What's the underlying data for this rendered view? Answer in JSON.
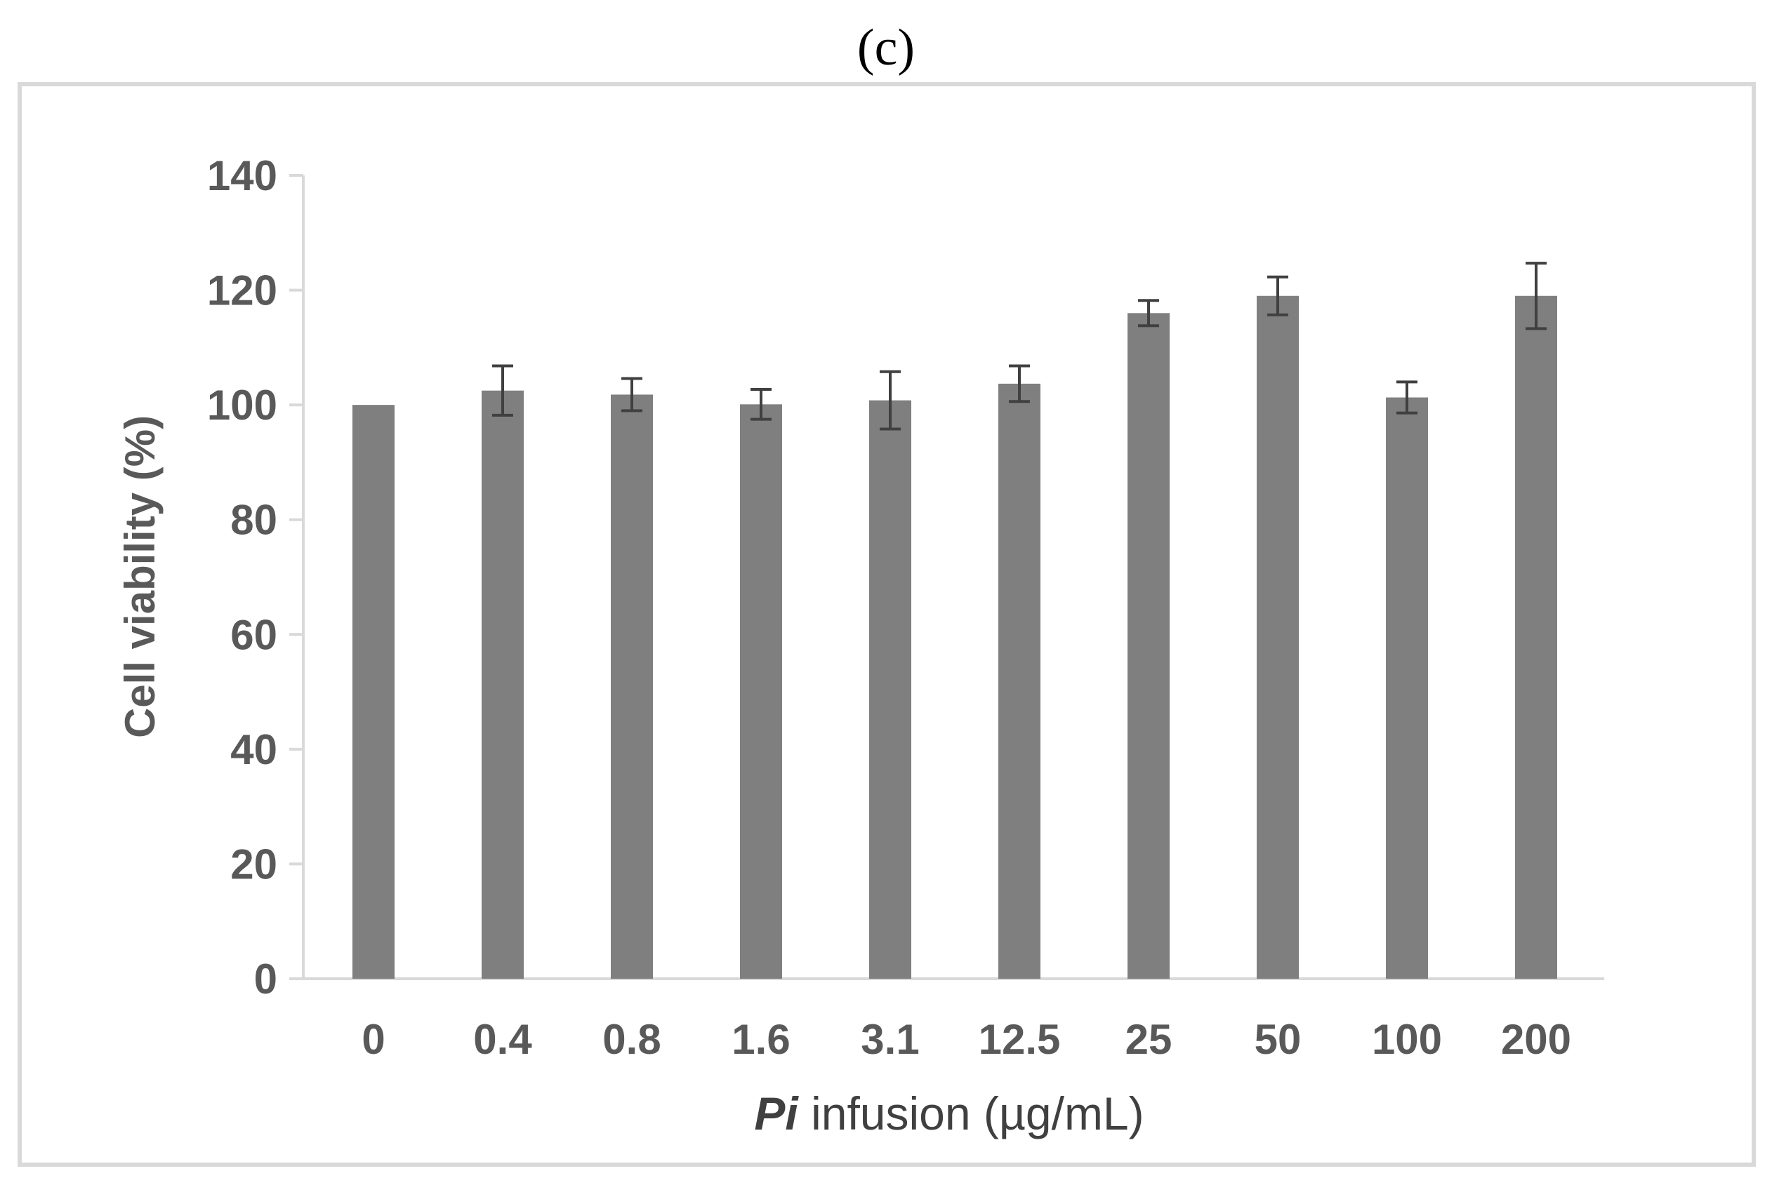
{
  "panel_label": "(c)",
  "colors": {
    "bar": "#7f7f7f",
    "error_bar": "#404040",
    "axis": "#d9d9d9",
    "frame": "#d9d9d9",
    "tick_text": "#595959"
  },
  "chart_data": {
    "type": "bar",
    "title": "",
    "xlabel_italic": "Pi",
    "xlabel_rest": " infusion (µg/mL)",
    "xlabel": "Pi infusion (µg/mL)",
    "ylabel": "Cell viability (%)",
    "ylim": [
      0,
      140
    ],
    "yticks": [
      0,
      20,
      40,
      60,
      80,
      100,
      120,
      140
    ],
    "ytick_labels": [
      "0",
      "20",
      "40",
      "60",
      "80",
      "100",
      "120",
      "140"
    ],
    "grid": false,
    "categories": [
      "0",
      "0.4",
      "0.8",
      "1.6",
      "3.1",
      "12.5",
      "25",
      "50",
      "100",
      "200"
    ],
    "values": [
      100,
      102.5,
      101.8,
      100.1,
      100.8,
      103.7,
      116,
      119,
      101.3,
      119
    ],
    "errors": [
      0,
      4.3,
      2.8,
      2.6,
      5,
      3.1,
      2.2,
      3.3,
      2.7,
      5.7
    ]
  }
}
